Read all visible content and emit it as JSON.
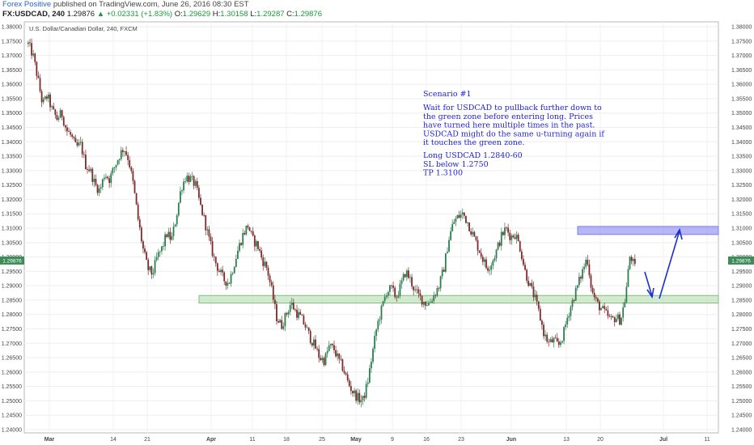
{
  "header": {
    "author": "Forex Positive",
    "published": " published on TradingView.com, June 26, 2016 08:30 EST",
    "symbol": "FX:USDCAD, 240",
    "last": "1.29876",
    "change": "▲ +0.02331 (+1.83%)",
    "o_label": "O:",
    "o_value": "1.29629",
    "h_label": "H:",
    "h_value": "1.30158",
    "l_label": "L:",
    "l_value": "1.29287",
    "c_label": "C:",
    "c_value": "1.29876"
  },
  "chart_data": {
    "type": "candlestick",
    "title": "U.S. Dollar/Canadian Dollar, 240, FXCM",
    "ylim": [
      1.24,
      1.38
    ],
    "y_ticks": [
      "1.38000",
      "1.37500",
      "1.37000",
      "1.36500",
      "1.36000",
      "1.35500",
      "1.35000",
      "1.34500",
      "1.34000",
      "1.33500",
      "1.33000",
      "1.32500",
      "1.32000",
      "1.31500",
      "1.31000",
      "1.30500",
      "1.30000",
      "1.29500",
      "1.29000",
      "1.28500",
      "1.28000",
      "1.27500",
      "1.27000",
      "1.26500",
      "1.26000",
      "1.25500",
      "1.25000",
      "1.24500",
      "1.24000"
    ],
    "x_ticks": [
      {
        "label": "Mar",
        "bold": true
      },
      {
        "label": "14",
        "bold": false
      },
      {
        "label": "21",
        "bold": false
      },
      {
        "label": "Apr",
        "bold": true
      },
      {
        "label": "11",
        "bold": false
      },
      {
        "label": "18",
        "bold": false
      },
      {
        "label": "25",
        "bold": false
      },
      {
        "label": "May",
        "bold": true
      },
      {
        "label": "9",
        "bold": false
      },
      {
        "label": "16",
        "bold": false
      },
      {
        "label": "23",
        "bold": false
      },
      {
        "label": "Jun",
        "bold": true
      },
      {
        "label": "13",
        "bold": false
      },
      {
        "label": "20",
        "bold": false
      },
      {
        "label": "Jul",
        "bold": true
      },
      {
        "label": "11",
        "bold": false
      }
    ],
    "price_label": "1.29876",
    "price_path": [
      1.374,
      1.37,
      1.362,
      1.353,
      1.356,
      1.351,
      1.348,
      1.35,
      1.344,
      1.342,
      1.338,
      1.339,
      1.332,
      1.33,
      1.325,
      1.323,
      1.329,
      1.327,
      1.331,
      1.335,
      1.338,
      1.334,
      1.325,
      1.313,
      1.303,
      1.296,
      1.294,
      1.3,
      1.303,
      1.308,
      1.306,
      1.314,
      1.324,
      1.328,
      1.327,
      1.325,
      1.318,
      1.312,
      1.305,
      1.299,
      1.295,
      1.292,
      1.291,
      1.297,
      1.303,
      1.308,
      1.311,
      1.306,
      1.304,
      1.299,
      1.296,
      1.288,
      1.279,
      1.276,
      1.28,
      1.284,
      1.281,
      1.279,
      1.276,
      1.272,
      1.269,
      1.265,
      1.264,
      1.269,
      1.268,
      1.264,
      1.261,
      1.256,
      1.253,
      1.251,
      1.25,
      1.256,
      1.266,
      1.276,
      1.282,
      1.288,
      1.289,
      1.286,
      1.29,
      1.295,
      1.292,
      1.288,
      1.286,
      1.284,
      1.284,
      1.287,
      1.29,
      1.296,
      1.306,
      1.312,
      1.314,
      1.315,
      1.312,
      1.308,
      1.304,
      1.3,
      1.296,
      1.298,
      1.302,
      1.307,
      1.31,
      1.307,
      1.308,
      1.303,
      1.295,
      1.29,
      1.286,
      1.28,
      1.273,
      1.27,
      1.271,
      1.269,
      1.273,
      1.28,
      1.285,
      1.29,
      1.295,
      1.3,
      1.288,
      1.284,
      1.282,
      1.28,
      1.278,
      1.279,
      1.278,
      1.286,
      1.301,
      1.296
    ],
    "annotations": {
      "resistance_zone": {
        "from": 1.3078,
        "to": 1.3106,
        "label_price": "1.31000"
      },
      "support_zone": {
        "from": 1.284,
        "to": 1.2866,
        "label_price": "1.28500"
      }
    },
    "scenario": {
      "title": "Scenario #1",
      "lines": [
        "Wait for USDCAD to pullback further down to",
        "the green zone before entering long. Prices",
        "have turned here multiple times in the past.",
        "USDCAD might do the same u-turning again if",
        "it touches the green zone."
      ],
      "trade": [
        "Long USDCAD 1.2840-60",
        "SL below 1.2750",
        "TP 1.3100"
      ]
    },
    "colors": {
      "up": "#2e7d4f",
      "down": "#7b2b2b",
      "resistance": "#7b7cf0",
      "support": "#9ed39a",
      "arrow": "#1a2fd0",
      "price_label_bg": "#3d8c5a"
    }
  }
}
